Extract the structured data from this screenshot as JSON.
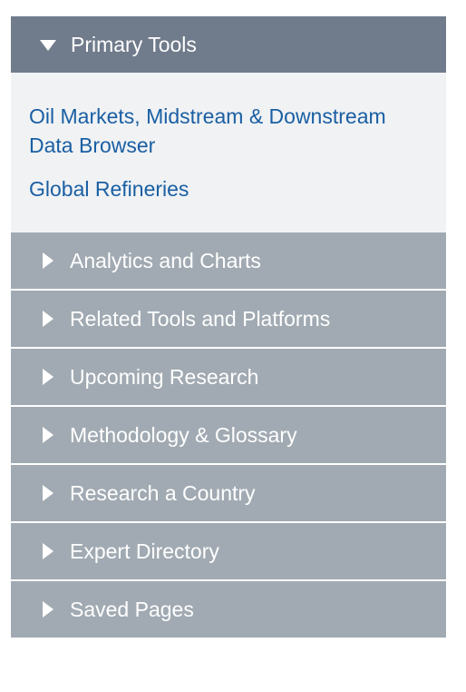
{
  "primary": {
    "title": "Primary Tools",
    "links": [
      "Oil Markets, Midstream & Downstream Data Browser",
      "Global Refineries"
    ]
  },
  "sections": [
    "Analytics and Charts",
    "Related Tools and Platforms",
    "Upcoming Research",
    "Methodology & Glossary",
    "Research a Country",
    "Expert Directory",
    "Saved Pages"
  ],
  "colors": {
    "header_open": "#707b8b",
    "section_bg": "#a1aab2",
    "content_bg": "#f0f2f4",
    "link": "#1a5fa3"
  }
}
